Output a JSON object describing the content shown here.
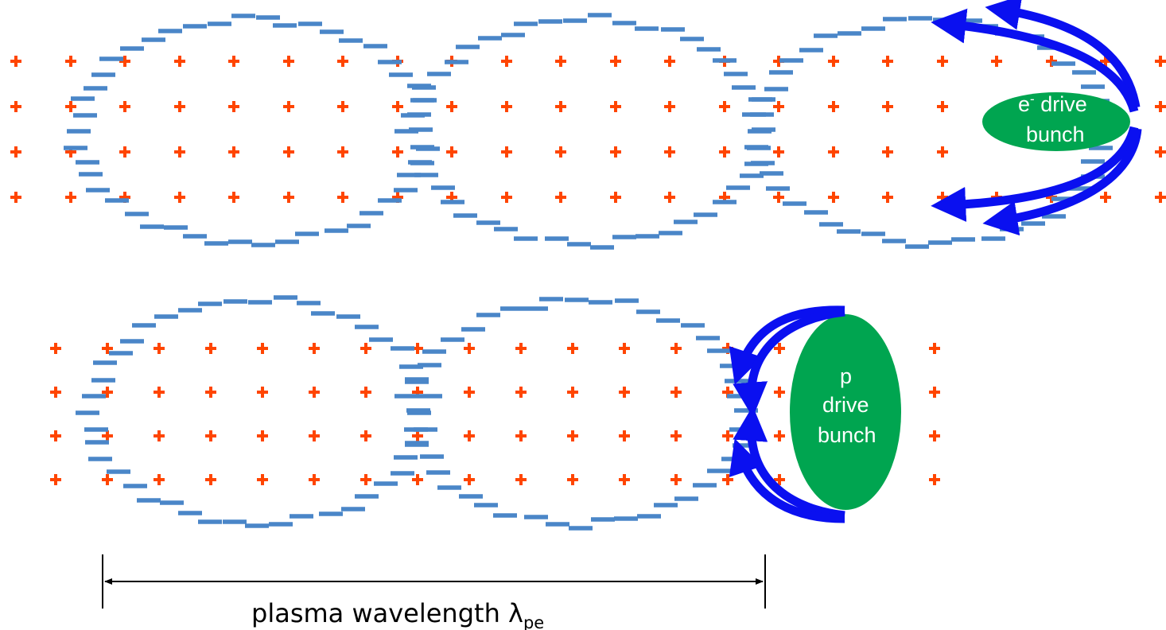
{
  "diagram": {
    "top_panel": {
      "bunch_label_main": "e",
      "bunch_label_sup": "-",
      "bunch_label_rest": " drive",
      "bunch_label_line2": "bunch"
    },
    "bottom_panel": {
      "bunch_label_line1": "p",
      "bunch_label_line2": "drive",
      "bunch_label_line3": "bunch"
    },
    "scale": {
      "label": "plasma wavelength λ",
      "label_sub": "pe"
    },
    "symbols": {
      "ion": "+",
      "electron": "−"
    }
  },
  "colors": {
    "ion": "#ff4500",
    "electron": "#4a86c8",
    "bunch": "#00a550",
    "arrow": "#0a10f0",
    "scale": "#000000"
  }
}
